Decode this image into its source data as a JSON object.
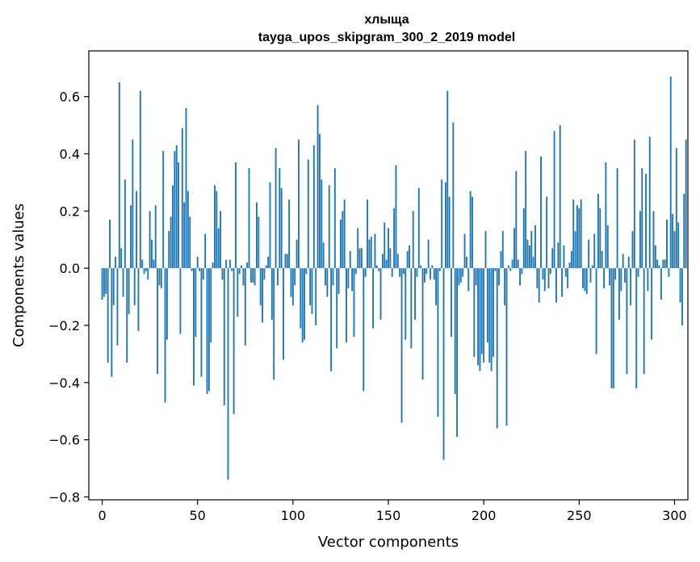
{
  "chart_data": {
    "type": "bar",
    "title": "хлыща",
    "subtitle": "tayga_upos_skipgram_300_2_2019 model",
    "xlabel": "Vector components",
    "ylabel": "Components values",
    "xlim": [
      -7,
      307
    ],
    "ylim": [
      -0.81,
      0.76
    ],
    "xticks": [
      0,
      50,
      100,
      150,
      200,
      250,
      300
    ],
    "yticks": [
      -0.8,
      -0.6,
      -0.4,
      -0.2,
      0.0,
      0.2,
      0.4,
      0.6
    ],
    "ytick_labels": [
      "−0.8",
      "−0.6",
      "−0.4",
      "−0.2",
      "0.0",
      "0.2",
      "0.4",
      "0.6"
    ],
    "bar_color": "#1f77b4",
    "values": [
      -0.11,
      -0.1,
      -0.09,
      -0.33,
      0.17,
      -0.38,
      -0.13,
      0.04,
      -0.27,
      0.65,
      0.07,
      -0.1,
      0.31,
      -0.33,
      -0.16,
      0.22,
      0.45,
      -0.13,
      0.27,
      -0.22,
      0.62,
      0.03,
      -0.02,
      -0.01,
      -0.04,
      0.2,
      0.1,
      0.03,
      0.22,
      -0.37,
      -0.06,
      -0.07,
      0.41,
      -0.47,
      -0.25,
      0.13,
      0.18,
      0.29,
      0.41,
      0.43,
      0.37,
      -0.23,
      0.49,
      0.23,
      0.56,
      0.27,
      0.18,
      -0.01,
      -0.41,
      -0.24,
      0.04,
      -0.01,
      -0.38,
      -0.04,
      0.12,
      -0.44,
      -0.43,
      -0.26,
      0.02,
      0.29,
      0.27,
      0.14,
      0.2,
      -0.04,
      -0.48,
      0.03,
      -0.74,
      0.03,
      -0.01,
      -0.51,
      0.37,
      -0.17,
      -0.02,
      0.01,
      -0.06,
      -0.27,
      0.02,
      0.35,
      -0.05,
      -0.05,
      -0.06,
      0.23,
      0.18,
      -0.13,
      -0.19,
      -0.04,
      0.01,
      0.04,
      0.3,
      -0.18,
      -0.39,
      0.42,
      -0.06,
      0.35,
      0.28,
      -0.32,
      0.05,
      0.05,
      0.24,
      -0.1,
      -0.13,
      -0.06,
      0.1,
      0.45,
      -0.21,
      -0.26,
      -0.25,
      -0.02,
      0.38,
      -0.13,
      -0.16,
      0.43,
      -0.2,
      0.57,
      0.47,
      0.31,
      0.09,
      -0.06,
      -0.1,
      0.29,
      -0.36,
      -0.06,
      0.35,
      -0.28,
      -0.09,
      0.17,
      0.2,
      0.24,
      -0.26,
      -0.07,
      0.06,
      -0.08,
      -0.24,
      -0.02,
      0.14,
      0.07,
      0.07,
      -0.43,
      -0.03,
      0.24,
      0.1,
      0.11,
      -0.21,
      0.12,
      0.01,
      -0.01,
      -0.18,
      0.05,
      0.16,
      0.03,
      0.14,
      0.07,
      -0.03,
      0.21,
      0.36,
      0.05,
      -0.03,
      -0.54,
      -0.02,
      -0.25,
      0.06,
      0.08,
      -0.28,
      0.2,
      -0.18,
      -0.03,
      0.28,
      0.01,
      -0.39,
      -0.05,
      -0.02,
      0.1,
      -0.04,
      0.01,
      -0.04,
      -0.13,
      -0.52,
      -0.01,
      0.31,
      -0.67,
      0.3,
      0.62,
      0.25,
      -0.24,
      0.51,
      -0.44,
      -0.59,
      -0.06,
      -0.05,
      -0.03,
      0.12,
      0.04,
      -0.08,
      0.27,
      0.25,
      -0.31,
      -0.06,
      -0.34,
      -0.36,
      -0.3,
      -0.33,
      0.13,
      -0.26,
      -0.33,
      -0.36,
      -0.31,
      -0.01,
      -0.56,
      -0.06,
      0.06,
      0.13,
      -0.13,
      -0.55,
      0.01,
      -0.01,
      0.03,
      0.14,
      0.34,
      0.03,
      -0.06,
      -0.02,
      0.21,
      0.41,
      0.1,
      0.08,
      0.13,
      0.04,
      0.15,
      -0.07,
      -0.12,
      0.39,
      -0.04,
      -0.08,
      0.25,
      -0.07,
      -0.02,
      0.07,
      0.48,
      -0.12,
      0.09,
      0.5,
      -0.1,
      0.08,
      -0.03,
      -0.07,
      0.02,
      0.06,
      0.24,
      0.13,
      0.22,
      0.21,
      0.24,
      -0.07,
      -0.08,
      -0.09,
      0.1,
      -0.05,
      0.01,
      0.12,
      -0.3,
      0.26,
      0.21,
      0.06,
      -0.07,
      0.37,
      0.15,
      -0.06,
      -0.42,
      -0.42,
      -0.04,
      0.35,
      -0.18,
      -0.08,
      0.05,
      -0.05,
      -0.37,
      0.04,
      -0.13,
      0.13,
      0.45,
      -0.42,
      -0.03,
      0.2,
      0.35,
      -0.37,
      0.33,
      -0.08,
      0.46,
      -0.25,
      0.2,
      0.08,
      0.03,
      0.01,
      -0.11,
      0.03,
      0.03,
      0.17,
      -0.03,
      0.67,
      0.19,
      0.13,
      0.42,
      0.16,
      -0.12,
      -0.2,
      0.26,
      0.45
    ]
  }
}
